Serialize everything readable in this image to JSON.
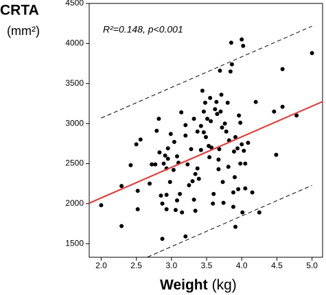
{
  "chart_data": {
    "type": "scatter",
    "ylabel": "CRTA",
    "ylabel_unit": "(mm²)",
    "xlabel": "Weight",
    "xlabel_unit": "(kg)",
    "annotation": "R²=0.148, p<0.001",
    "color": "#000000",
    "xlim": [
      1.83,
      5.15
    ],
    "ylim": [
      1330,
      4500
    ],
    "xticks": [
      {
        "value": 2,
        "label": "2.0"
      },
      {
        "value": 2.5,
        "label": "2.5"
      },
      {
        "value": 3,
        "label": "3.0"
      },
      {
        "value": 3.5,
        "label": "3.5"
      },
      {
        "value": 4,
        "label": "4.0"
      },
      {
        "value": 4.5,
        "label": "4.5"
      },
      {
        "value": 5,
        "label": "5.0"
      }
    ],
    "yticks": [
      1500,
      2000,
      2500,
      3000,
      3500,
      4000,
      4500
    ],
    "x": [
      2.0,
      2.29,
      2.29,
      2.42,
      2.5,
      2.56,
      2.52,
      2.52,
      2.69,
      2.72,
      2.77,
      2.79,
      2.82,
      2.83,
      2.85,
      2.87,
      2.87,
      2.89,
      2.91,
      2.93,
      2.93,
      2.93,
      2.95,
      2.95,
      2.99,
      2.98,
      3.03,
      3.04,
      3.08,
      3.06,
      3.08,
      3.1,
      3.12,
      3.14,
      3.15,
      3.2,
      3.2,
      3.2,
      3.23,
      3.25,
      3.28,
      3.3,
      3.32,
      3.34,
      3.32,
      3.34,
      3.37,
      3.37,
      3.39,
      3.42,
      3.42,
      3.44,
      3.46,
      3.46,
      3.48,
      3.49,
      3.51,
      3.53,
      3.54,
      3.55,
      3.56,
      3.57,
      3.59,
      3.6,
      3.62,
      3.64,
      3.65,
      3.67,
      3.67,
      3.68,
      3.7,
      3.71,
      3.72,
      3.73,
      3.74,
      3.76,
      3.78,
      3.8,
      3.81,
      3.82,
      3.84,
      3.86,
      3.88,
      3.88,
      3.89,
      3.9,
      3.91,
      3.91,
      3.94,
      3.96,
      3.98,
      4.0,
      4.0,
      4.02,
      3.85,
      3.69,
      4.03,
      3.98,
      4.05,
      3.95,
      4.01,
      4.05,
      4.15,
      4.2,
      4.25,
      4.09,
      4.46,
      4.49,
      4.58,
      4.58,
      4.78,
      5.0
    ],
    "values": [
      1980,
      2220,
      1720,
      2480,
      2740,
      2800,
      2160,
      1930,
      2250,
      2490,
      2490,
      2910,
      3060,
      2640,
      2100,
      2000,
      1560,
      2500,
      2600,
      1930,
      2440,
      2110,
      2560,
      2690,
      2870,
      2270,
      2420,
      2770,
      2590,
      1920,
      2040,
      2510,
      2120,
      3140,
      1890,
      2850,
      2980,
      1590,
      2490,
      2230,
      2680,
      2280,
      3060,
      2370,
      2050,
      1910,
      2900,
      2440,
      2310,
      2670,
      2970,
      3410,
      2890,
      3150,
      3260,
      2830,
      3060,
      2720,
      2580,
      3320,
      3030,
      2700,
      2000,
      2120,
      3180,
      3270,
      3120,
      2550,
      2430,
      2680,
      3150,
      3360,
      2950,
      2270,
      2010,
      3000,
      2900,
      3260,
      2460,
      2790,
      3650,
      3740,
      2140,
      1960,
      2650,
      2330,
      2830,
      1710,
      2690,
      3100,
      3010,
      2740,
      4050,
      3970,
      4010,
      3660,
      2660,
      2500,
      2500,
      2180,
      1890,
      2190,
      2140,
      3270,
      1890,
      2760,
      3150,
      2610,
      3210,
      3680,
      3100,
      3880
    ],
    "lines": [
      {
        "x": [
          1.83,
          5.15
        ],
        "y": [
          2006,
          3274
        ],
        "color": "#e0403f",
        "dash": false
      },
      {
        "x": [
          2.0,
          5.0
        ],
        "y": [
          3068,
          4216
        ],
        "color": "#000000",
        "dash": true
      },
      {
        "x": [
          2.66,
          5.0
        ],
        "y": [
          1333,
          2228
        ],
        "color": "#000000",
        "dash": true
      }
    ]
  }
}
